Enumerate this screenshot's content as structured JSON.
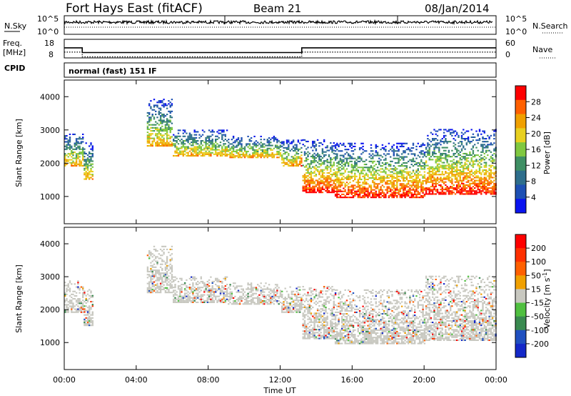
{
  "header": {
    "station": "Fort Hays East (fitACF)",
    "beam": "Beam 21",
    "date": "08/Jan/2014"
  },
  "noise_panel": {
    "left_label": "N.Sky",
    "right_label": "N.Search",
    "left_ticks": [
      "10^5",
      "10^0"
    ],
    "right_ticks": [
      "10^5",
      "10^0"
    ]
  },
  "freq_panel": {
    "left_label_line1": "Freq.",
    "left_label_line2": "[MHz]",
    "right_label": "Nave",
    "left_ticks": [
      "18",
      "8"
    ],
    "right_ticks": [
      "60",
      "0"
    ]
  },
  "cpid": {
    "label": "CPID",
    "value": "normal (fast) 151 IF"
  },
  "chart_data": [
    {
      "type": "heatmap",
      "title": "",
      "xlabel": "Time UT",
      "ylabel": "Slant Range [km]",
      "x_ticks": [
        "00:00",
        "04:00",
        "08:00",
        "12:00",
        "16:00",
        "20:00",
        "00:00"
      ],
      "x_hours": [
        0,
        4,
        8,
        12,
        16,
        20,
        24
      ],
      "y_ticks": [
        1000,
        2000,
        3000,
        4000
      ],
      "ylim": [
        180,
        4500
      ],
      "colorbar_label": "Power [dB]",
      "colorbar_ticks": [
        "28",
        "24",
        "20",
        "16",
        "12",
        "8",
        "4"
      ],
      "colors": [
        "#0a14f0",
        "#1e50b4",
        "#2e6e8c",
        "#3f8f64",
        "#80c840",
        "#e8d020",
        "#f0a000",
        "#ff6000",
        "#ff0000"
      ]
    },
    {
      "type": "heatmap",
      "title": "",
      "xlabel": "Time UT",
      "ylabel": "Slant Range [km]",
      "x_ticks": [
        "00:00",
        "04:00",
        "08:00",
        "12:00",
        "16:00",
        "20:00",
        "00:00"
      ],
      "x_hours": [
        0,
        4,
        8,
        12,
        16,
        20,
        24
      ],
      "y_ticks": [
        1000,
        2000,
        3000,
        4000
      ],
      "ylim": [
        180,
        4500
      ],
      "colorbar_label": "Velocity [m s",
      "colorbar_label_sup": "-1",
      "colorbar_label_end": "]",
      "colorbar_ticks": [
        "200",
        "100",
        "50",
        "15",
        "-15",
        "-50",
        "-100",
        "-200"
      ],
      "colors": [
        "#1428c8",
        "#2050c0",
        "#3a8a50",
        "#50c040",
        "#c8c8c0",
        "#f0a000",
        "#ff6000",
        "#ff3000",
        "#ff0000"
      ]
    }
  ],
  "scatter_profile": {
    "note_free": true,
    "segments": [
      {
        "t0": 0.0,
        "t1": 1.0,
        "lower": 1900,
        "upper": 2900
      },
      {
        "t0": 1.0,
        "t1": 1.6,
        "lower": 1500,
        "upper": 2600
      },
      {
        "t0": 4.5,
        "t1": 6.0,
        "lower": 2500,
        "upper": 3900
      },
      {
        "t0": 6.0,
        "t1": 9.0,
        "lower": 2200,
        "upper": 3000
      },
      {
        "t0": 9.0,
        "t1": 12.0,
        "lower": 2150,
        "upper": 2800
      },
      {
        "t0": 12.0,
        "t1": 13.2,
        "lower": 1900,
        "upper": 2700
      },
      {
        "t0": 13.2,
        "t1": 15.0,
        "lower": 1100,
        "upper": 2700
      },
      {
        "t0": 15.0,
        "t1": 20.0,
        "lower": 950,
        "upper": 2600
      },
      {
        "t0": 20.0,
        "t1": 24.0,
        "lower": 1050,
        "upper": 3000
      }
    ],
    "freq_steps": [
      {
        "t0": 0.0,
        "t1": 1.0,
        "mhz": 13.5
      },
      {
        "t0": 1.0,
        "t1": 13.2,
        "mhz": 10.5
      },
      {
        "t0": 13.2,
        "t1": 24.0,
        "mhz": 13.5
      }
    ]
  }
}
